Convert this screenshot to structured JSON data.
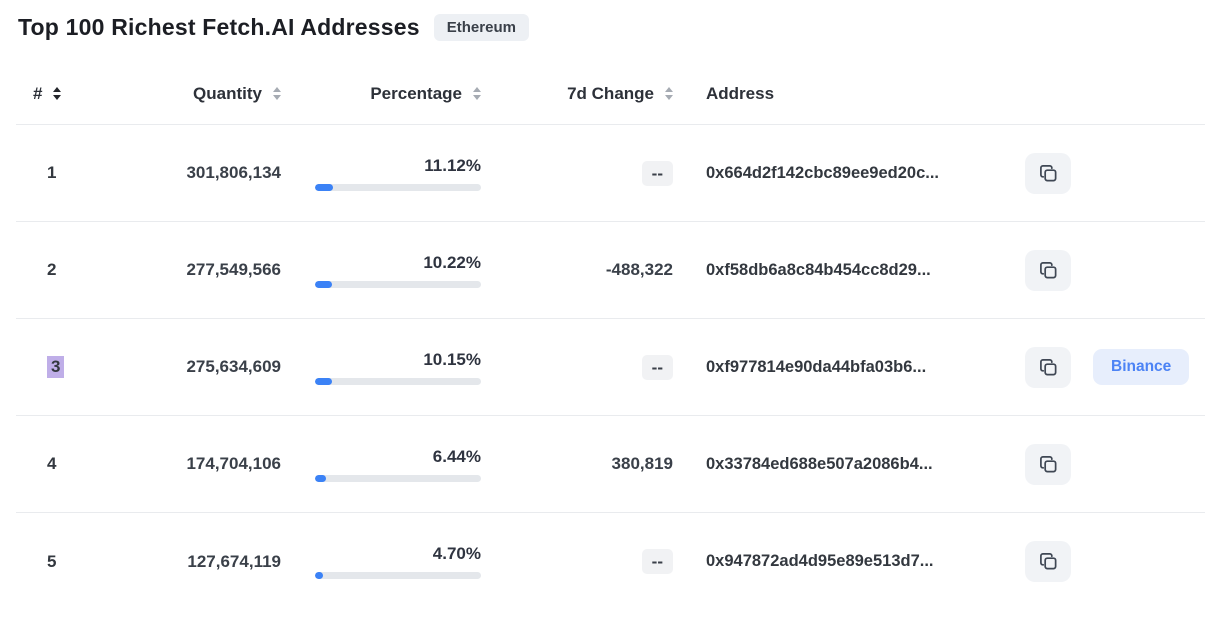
{
  "header": {
    "title": "Top 100 Richest Fetch.AI Addresses",
    "badge": "Ethereum"
  },
  "table": {
    "columns": {
      "rank": "#",
      "quantity": "Quantity",
      "percentage": "Percentage",
      "change": "7d Change",
      "address": "Address"
    },
    "rows": [
      {
        "rank": "1",
        "quantity": "301,806,134",
        "percentage": "11.12%",
        "percent_of_supply": 11.12,
        "change": "--",
        "address": "0x664d2f142cbc89ee9ed20c...",
        "tag": "",
        "rank_highlighted": false
      },
      {
        "rank": "2",
        "quantity": "277,549,566",
        "percentage": "10.22%",
        "percent_of_supply": 10.22,
        "change": "-488,322",
        "address": "0xf58db6a8c84b454cc8d29...",
        "tag": "",
        "rank_highlighted": false
      },
      {
        "rank": "3",
        "quantity": "275,634,609",
        "percentage": "10.15%",
        "percent_of_supply": 10.15,
        "change": "--",
        "address": "0xf977814e90da44bfa03b6...",
        "tag": "Binance",
        "rank_highlighted": true
      },
      {
        "rank": "4",
        "quantity": "174,704,106",
        "percentage": "6.44%",
        "percent_of_supply": 6.44,
        "change": "380,819",
        "address": "0x33784ed688e507a2086b4...",
        "tag": "",
        "rank_highlighted": false
      },
      {
        "rank": "5",
        "quantity": "127,674,119",
        "percentage": "4.70%",
        "percent_of_supply": 4.7,
        "change": "--",
        "address": "0x947872ad4d95e89e513d7...",
        "tag": "",
        "rank_highlighted": false
      }
    ]
  },
  "colors": {
    "accent_blue": "#3b82f6",
    "bar_track": "#e4e7eb",
    "badge_bg": "#edf0f4",
    "tag_bg": "#e7eefc",
    "tag_text": "#4c83f5",
    "divider": "#e9ebee",
    "rank_selection": "#bfaee8"
  }
}
